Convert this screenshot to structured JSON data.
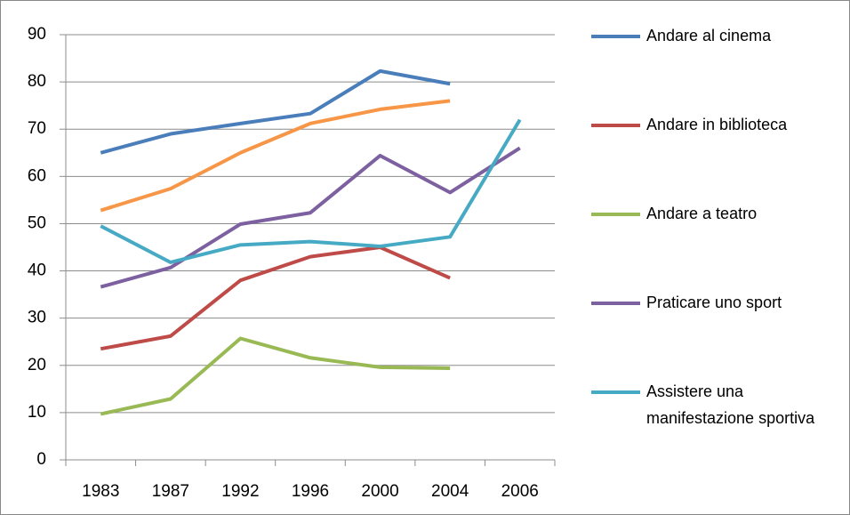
{
  "chart_data": {
    "type": "line",
    "categories": [
      "1983",
      "1987",
      "1992",
      "1996",
      "2000",
      "2004",
      "2006"
    ],
    "series": [
      {
        "name": "Andare al cinema",
        "color": "#4a7ebb",
        "values": [
          65,
          69,
          71.2,
          73.3,
          82.3,
          79.6,
          null
        ]
      },
      {
        "name": "Andare in biblioteca",
        "color": "#be4b48",
        "values": [
          23.5,
          26.2,
          38,
          43,
          45,
          38.5,
          null
        ]
      },
      {
        "name": "Andare a teatro",
        "color": "#98b954",
        "values": [
          9.7,
          12.9,
          25.7,
          21.6,
          19.6,
          19.4,
          null
        ]
      },
      {
        "name": "Praticare uno sport",
        "color": "#7d60a0",
        "values": [
          36.6,
          40.7,
          49.9,
          52.3,
          64.4,
          56.6,
          66
        ]
      },
      {
        "name": "Assistere una manifestazione sportiva",
        "color": "#46aac5",
        "values": [
          49.5,
          41.8,
          45.5,
          46.2,
          45.2,
          47.2,
          72
        ]
      },
      {
        "color": "#f79646",
        "values": [
          52.8,
          57.4,
          65,
          71.2,
          74.2,
          76,
          null
        ]
      }
    ],
    "ylim": [
      0,
      90
    ],
    "yticks": [
      0,
      10,
      20,
      30,
      40,
      50,
      60,
      70,
      80,
      90
    ],
    "grid": true,
    "legend": "right"
  }
}
